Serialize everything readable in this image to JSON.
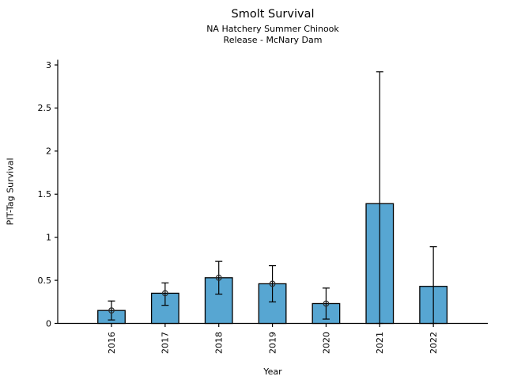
{
  "figure": {
    "title": "Smolt Survival",
    "subtitle_line1": "NA Hatchery Summer Chinook",
    "subtitle_line2": "Release - McNary Dam"
  },
  "chart_data": {
    "type": "bar",
    "title": "Smolt Survival",
    "subtitle": [
      "NA Hatchery Summer Chinook",
      "Release - McNary Dam"
    ],
    "xlabel": "Year",
    "ylabel": "PIT-Tag Survival",
    "categories": [
      "2016",
      "2017",
      "2018",
      "2019",
      "2020",
      "2021",
      "2022"
    ],
    "values": [
      0.15,
      0.35,
      0.53,
      0.46,
      0.23,
      1.39,
      0.43
    ],
    "error_low": [
      0.04,
      0.21,
      0.34,
      0.25,
      0.05,
      0.0,
      0.0
    ],
    "error_high": [
      0.26,
      0.47,
      0.72,
      0.67,
      0.41,
      2.92,
      0.89
    ],
    "point_markers": [
      true,
      true,
      true,
      true,
      true,
      false,
      false
    ],
    "ylim": [
      0,
      3.06
    ],
    "yticks": [
      0,
      0.5,
      1,
      1.5,
      2,
      2.5,
      3
    ],
    "ytick_labels": [
      "0",
      "0.5",
      "1",
      "1.5",
      "2",
      "2.5",
      "3"
    ],
    "grid": false,
    "legend": null,
    "colors": {
      "bar_fill": "#57A6D2",
      "bar_edge": "#000000",
      "error_bar": "#000000",
      "marker_edge": "#2b2b2b",
      "axis": "#000000",
      "background": "#ffffff"
    }
  }
}
